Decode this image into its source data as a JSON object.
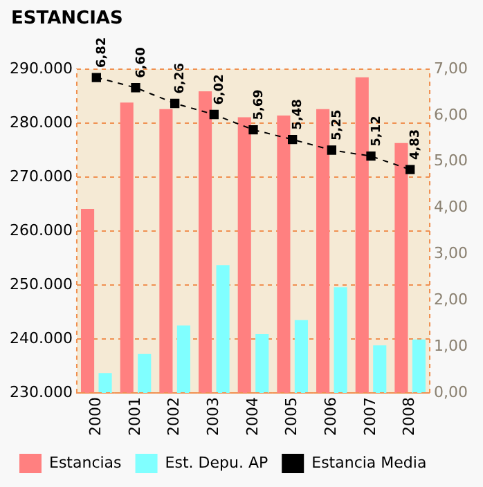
{
  "chart_data": {
    "type": "bar",
    "title": "ESTANCIAS",
    "categories": [
      "2000",
      "2001",
      "2002",
      "2003",
      "2004",
      "2005",
      "2006",
      "2007",
      "2008"
    ],
    "series": [
      {
        "name": "Estancias",
        "color": "#ff8080",
        "values": [
          264100,
          283800,
          282600,
          285900,
          281100,
          281400,
          282600,
          288500,
          276300
        ]
      },
      {
        "name": "Est. Depu. AP",
        "color": "#80ffff",
        "values": [
          233700,
          237200,
          242500,
          253700,
          240900,
          243500,
          249600,
          238800,
          239900
        ]
      },
      {
        "name": "Estancia Media",
        "type": "line",
        "axis": "y2",
        "color": "#000000",
        "marker": "square",
        "line_style": "dashed",
        "values": [
          6.82,
          6.6,
          6.26,
          6.02,
          5.69,
          5.48,
          5.25,
          5.12,
          4.83
        ],
        "value_labels": [
          "6,82",
          "6,60",
          "6,26",
          "6,02",
          "5,69",
          "5,48",
          "5,25",
          "5,12",
          "4,83"
        ]
      }
    ],
    "ylim": [
      230000,
      290000
    ],
    "yticks": [
      {
        "value": 230000,
        "label": "230.000"
      },
      {
        "value": 240000,
        "label": "240.000"
      },
      {
        "value": 250000,
        "label": "250.000"
      },
      {
        "value": 260000,
        "label": "260.000"
      },
      {
        "value": 270000,
        "label": "270.000"
      },
      {
        "value": 280000,
        "label": "280.000"
      },
      {
        "value": 290000,
        "label": "290.000"
      }
    ],
    "y2lim": [
      0,
      7
    ],
    "y2ticks": [
      {
        "value": 0,
        "label": "0,00"
      },
      {
        "value": 1,
        "label": "1,00"
      },
      {
        "value": 2,
        "label": "2,00"
      },
      {
        "value": 3,
        "label": "3,00"
      },
      {
        "value": 4,
        "label": "4,00"
      },
      {
        "value": 5,
        "label": "5,00"
      },
      {
        "value": 6,
        "label": "6,00"
      },
      {
        "value": 7,
        "label": "7,00"
      }
    ],
    "grid": "y",
    "legend": "bottom"
  }
}
